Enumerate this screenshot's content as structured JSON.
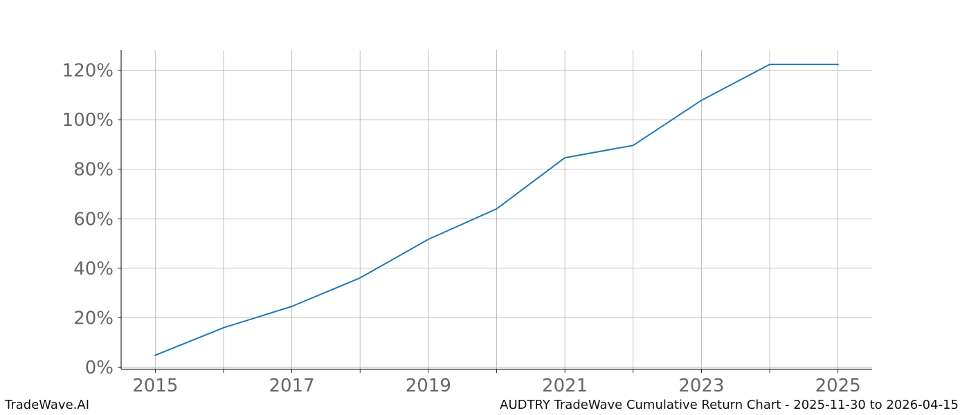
{
  "footer": {
    "brand": "TradeWave.AI",
    "caption": "AUDTRY TradeWave Cumulative Return Chart - 2025-11-30 to 2026-04-15"
  },
  "chart_data": {
    "type": "line",
    "x": [
      2015,
      2016,
      2017,
      2018,
      2019,
      2020,
      2021,
      2022,
      2023,
      2024,
      2025
    ],
    "series": [
      {
        "values": [
          4.9,
          16.0,
          24.6,
          36.1,
          51.7,
          64.0,
          84.6,
          89.6,
          107.8,
          122.3,
          122.3
        ]
      }
    ],
    "xticks": [
      2015,
      2017,
      2019,
      2021,
      2023,
      2025
    ],
    "xtick_labels": [
      "2015",
      "2017",
      "2019",
      "2021",
      "2023",
      "2025"
    ],
    "yticks": [
      0,
      20,
      40,
      60,
      80,
      100,
      120
    ],
    "ytick_labels": [
      "0%",
      "20%",
      "40%",
      "60%",
      "80%",
      "100%",
      "120%"
    ],
    "xlim": [
      2014.5,
      2025.5
    ],
    "ylim": [
      -0.8,
      128.2
    ],
    "grid": true,
    "line_color": "#1f77b4",
    "grid_color": "#b0b0b0"
  }
}
